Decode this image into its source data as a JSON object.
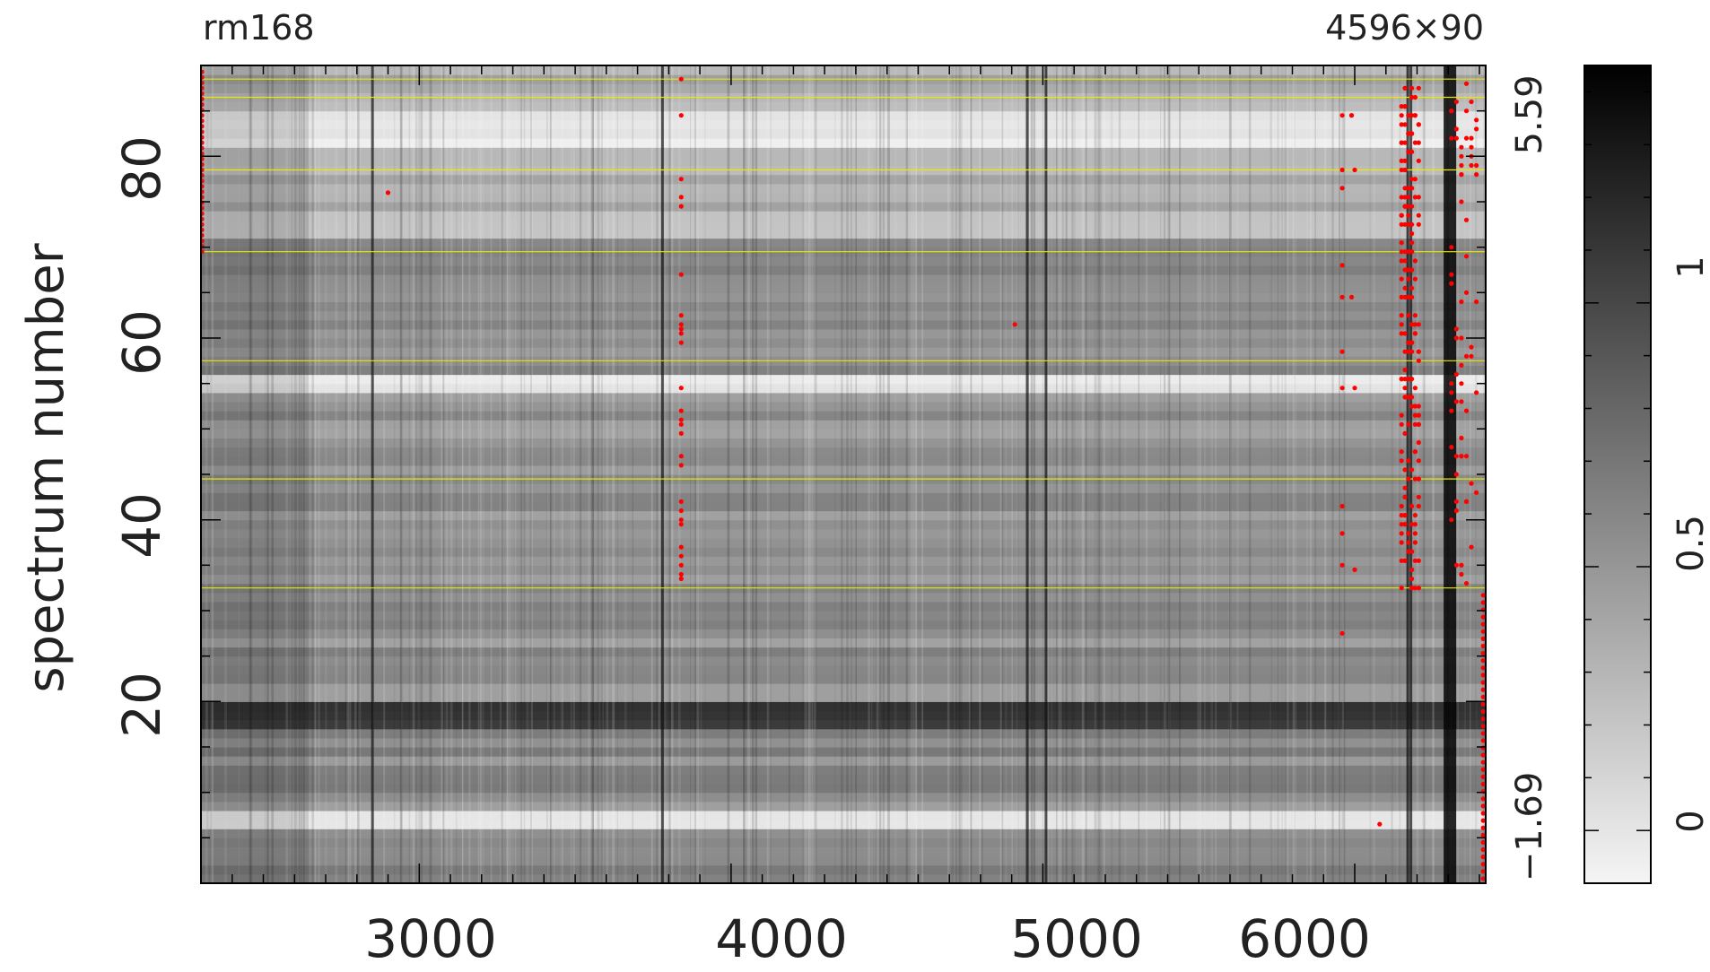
{
  "chart_data": {
    "type": "heatmap",
    "title_left": "rm168",
    "title_right": "4596×90",
    "ylabel": "spectrum number",
    "x_ticks": [
      "3000",
      "4000",
      "5000",
      "6000"
    ],
    "y_ticks": [
      "20",
      "40",
      "60",
      "80"
    ],
    "xlim": [
      2300,
      6420
    ],
    "ylim": [
      0,
      90
    ],
    "value_range_labels": {
      "max": "5.59",
      "min": "−1.69"
    },
    "colorbar": {
      "ticks": [
        "0",
        "0.5",
        "1"
      ],
      "range": [
        -0.1,
        1.45
      ]
    },
    "horizontal_markers": [
      32.5,
      44.5,
      57.5,
      69.5,
      78.5,
      86.5,
      88.5
    ],
    "dark_columns": [
      2850,
      3780,
      4950,
      5010,
      6170,
      6180
    ],
    "bright_rows": [
      6,
      7,
      54,
      55,
      81,
      82,
      83,
      84
    ],
    "dark_rows": [
      17,
      18,
      19
    ],
    "colors": {
      "bad_pixel": "#ff0000",
      "marker_line": "#e8e800",
      "frame": "#000000"
    }
  }
}
